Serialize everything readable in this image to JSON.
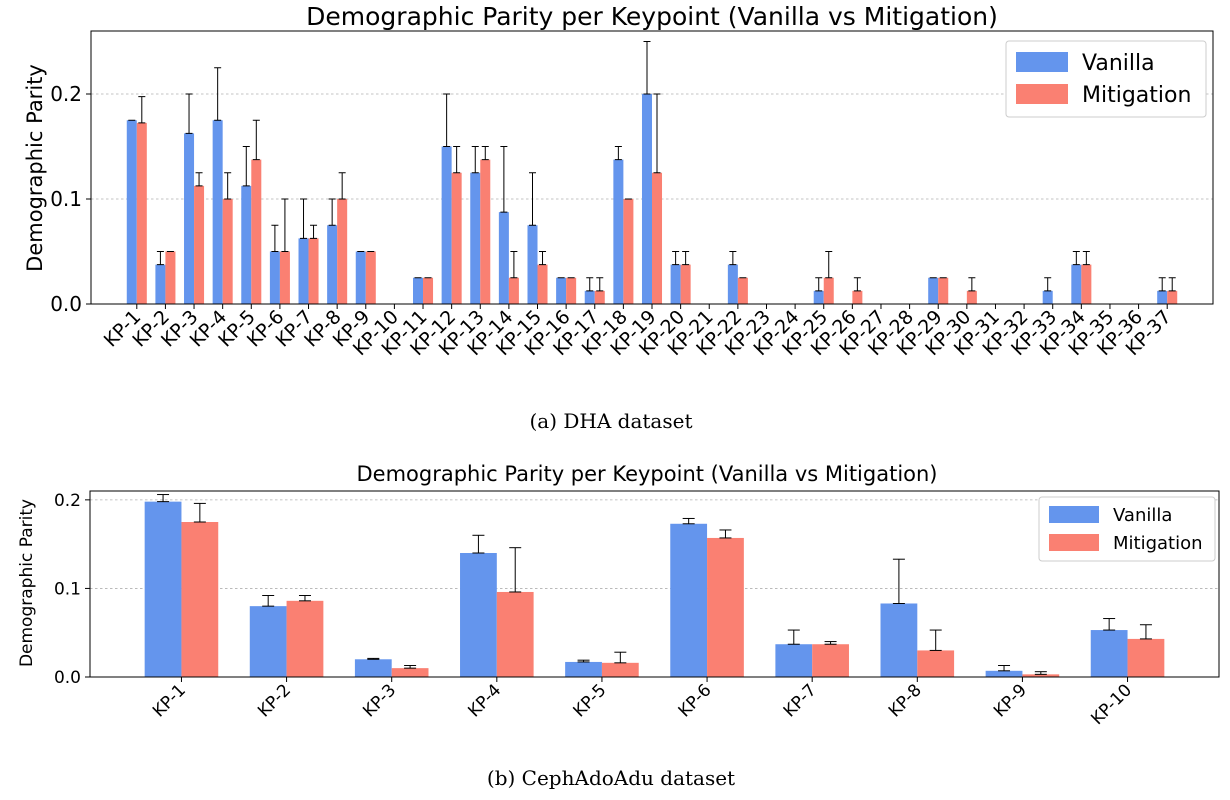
{
  "colors": {
    "vanilla": "#6495ED",
    "mitigation": "#FA8072"
  },
  "chart_data": [
    {
      "type": "bar",
      "title": "Demographic Parity per Keypoint (Vanilla vs Mitigation)",
      "caption": "(a) DHA dataset",
      "xlabel": "",
      "ylabel": "Demographic Parity",
      "ylim": [
        0,
        0.26
      ],
      "yticks": [
        0.0,
        0.1,
        0.2
      ],
      "ytick_labels": [
        "0.0",
        "0.1",
        "0.2"
      ],
      "grid": "y",
      "legend_position": "top-right",
      "categories": [
        "KP-1",
        "KP-2",
        "KP-3",
        "KP-4",
        "KP-5",
        "KP-6",
        "KP-7",
        "KP-8",
        "KP-9",
        "KP-10",
        "KP-11",
        "KP-12",
        "KP-13",
        "KP-14",
        "KP-15",
        "KP-16",
        "KP-17",
        "KP-18",
        "KP-19",
        "KP-20",
        "KP-21",
        "KP-22",
        "KP-23",
        "KP-24",
        "KP-25",
        "KP-26",
        "KP-27",
        "KP-28",
        "KP-29",
        "KP-30",
        "KP-31",
        "KP-32",
        "KP-33",
        "KP-34",
        "KP-35",
        "KP-36",
        "KP-37"
      ],
      "series": [
        {
          "name": "Vanilla",
          "values": [
            0.175,
            0.0375,
            0.1625,
            0.175,
            0.1125,
            0.05,
            0.0625,
            0.075,
            0.05,
            0,
            0.025,
            0.15,
            0.125,
            0.0875,
            0.075,
            0.025,
            0.0125,
            0.1375,
            0.2,
            0.0375,
            0,
            0.0375,
            0,
            0,
            0.0125,
            0,
            0,
            0,
            0.025,
            0,
            0,
            0,
            0.0125,
            0.0375,
            0,
            0,
            0.0125
          ],
          "errors": [
            0,
            0.0125,
            0.0375,
            0.05,
            0.0375,
            0.025,
            0.0375,
            0.025,
            0,
            0,
            0,
            0.05,
            0.025,
            0.0625,
            0.05,
            0,
            0.0125,
            0.0125,
            0.05,
            0.0125,
            0,
            0.0125,
            0,
            0,
            0.0125,
            0,
            0,
            0,
            0,
            0,
            0,
            0,
            0.0125,
            0.0125,
            0,
            0,
            0.0125
          ]
        },
        {
          "name": "Mitigation",
          "values": [
            0.1725,
            0.05,
            0.1125,
            0.1,
            0.1375,
            0.05,
            0.0625,
            0.1,
            0.05,
            0,
            0.025,
            0.125,
            0.1375,
            0.025,
            0.0375,
            0.025,
            0.0125,
            0.1,
            0.125,
            0.0375,
            0,
            0.025,
            0,
            0,
            0.025,
            0.0125,
            0,
            0,
            0.025,
            0.0125,
            0,
            0,
            0,
            0.0375,
            0,
            0,
            0.0125
          ],
          "errors": [
            0.025,
            0,
            0.0125,
            0.025,
            0.0375,
            0.05,
            0.0125,
            0.025,
            0,
            0,
            0,
            0.025,
            0.0125,
            0.025,
            0.0125,
            0,
            0.0125,
            0,
            0.075,
            0.0125,
            0,
            0,
            0,
            0,
            0.025,
            0.0125,
            0,
            0,
            0,
            0.0125,
            0,
            0,
            0,
            0.0125,
            0,
            0,
            0.0125
          ]
        }
      ]
    },
    {
      "type": "bar",
      "title": "Demographic Parity per Keypoint (Vanilla vs Mitigation)",
      "caption": "(b) CephAdoAdu dataset",
      "xlabel": "",
      "ylabel": "Demographic Parity",
      "ylim": [
        0,
        0.21
      ],
      "yticks": [
        0.0,
        0.1,
        0.2
      ],
      "ytick_labels": [
        "0.0",
        "0.1",
        "0.2"
      ],
      "grid": "y",
      "legend_position": "top-right",
      "categories": [
        "KP-1",
        "KP-2",
        "KP-3",
        "KP-4",
        "KP-5",
        "KP-6",
        "KP-7",
        "KP-8",
        "KP-9",
        "KP-10"
      ],
      "series": [
        {
          "name": "Vanilla",
          "values": [
            0.198,
            0.08,
            0.02,
            0.14,
            0.017,
            0.173,
            0.037,
            0.083,
            0.007,
            0.053
          ],
          "errors": [
            0.008,
            0.012,
            0.001,
            0.02,
            0.002,
            0.006,
            0.016,
            0.05,
            0.006,
            0.013
          ]
        },
        {
          "name": "Mitigation",
          "values": [
            0.175,
            0.086,
            0.01,
            0.096,
            0.016,
            0.157,
            0.037,
            0.03,
            0.003,
            0.043
          ],
          "errors": [
            0.021,
            0.006,
            0.003,
            0.05,
            0.012,
            0.009,
            0.003,
            0.023,
            0.003,
            0.016
          ]
        }
      ]
    }
  ]
}
